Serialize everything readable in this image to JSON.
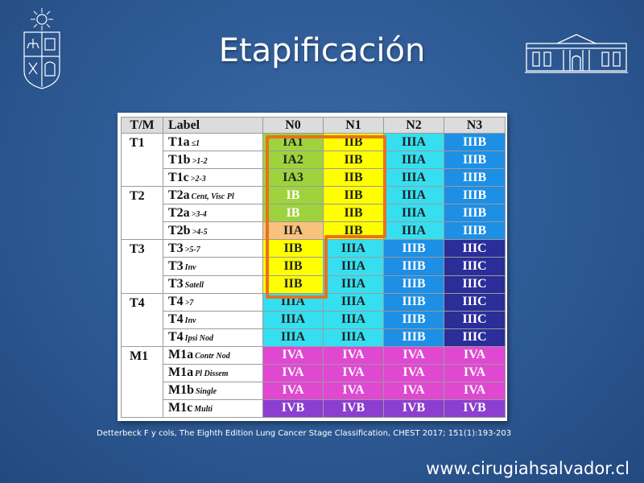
{
  "slide": {
    "title": "Etapificación",
    "citation": "Detterbeck  F y cols, The Eighth Edition Lung Cancer Stage Classification, CHEST 2017; 151(1):193-203",
    "website": "www.cirugiahsalvador.cl"
  },
  "table": {
    "headers": [
      "T/M",
      "Label",
      "N0",
      "N1",
      "N2",
      "N3"
    ],
    "groups": [
      {
        "tm": "T1",
        "rows": [
          {
            "label": "T1a",
            "sub": "≤1",
            "cells": [
              "IA1",
              "IIB",
              "IIIA",
              "IIIB"
            ]
          },
          {
            "label": "T1b",
            "sub": ">1-2",
            "cells": [
              "IA2",
              "IIB",
              "IIIA",
              "IIIB"
            ]
          },
          {
            "label": "T1c",
            "sub": ">2-3",
            "cells": [
              "IA3",
              "IIB",
              "IIIA",
              "IIIB"
            ]
          }
        ]
      },
      {
        "tm": "T2",
        "rows": [
          {
            "label": "T2a",
            "sub": "Cent, Visc Pl",
            "cells": [
              "IB",
              "IIB",
              "IIIA",
              "IIIB"
            ]
          },
          {
            "label": "T2a",
            "sub": ">3-4",
            "cells": [
              "IB",
              "IIB",
              "IIIA",
              "IIIB"
            ]
          },
          {
            "label": "T2b",
            "sub": ">4-5",
            "cells": [
              "IIA",
              "IIB",
              "IIIA",
              "IIIB"
            ]
          }
        ]
      },
      {
        "tm": "T3",
        "rows": [
          {
            "label": "T3",
            "sub": ">5-7",
            "cells": [
              "IIB",
              "IIIA",
              "IIIB",
              "IIIC"
            ]
          },
          {
            "label": "T3",
            "sub": "Inv",
            "cells": [
              "IIB",
              "IIIA",
              "IIIB",
              "IIIC"
            ]
          },
          {
            "label": "T3",
            "sub": "Satell",
            "cells": [
              "IIB",
              "IIIA",
              "IIIB",
              "IIIC"
            ]
          }
        ]
      },
      {
        "tm": "T4",
        "rows": [
          {
            "label": "T4",
            "sub": ">7",
            "cells": [
              "IIIA",
              "IIIA",
              "IIIB",
              "IIIC"
            ]
          },
          {
            "label": "T4",
            "sub": "Inv",
            "cells": [
              "IIIA",
              "IIIA",
              "IIIB",
              "IIIC"
            ]
          },
          {
            "label": "T4",
            "sub": "Ipsi Nod",
            "cells": [
              "IIIA",
              "IIIA",
              "IIIB",
              "IIIC"
            ]
          }
        ]
      },
      {
        "tm": "M1",
        "rows": [
          {
            "label": "M1a",
            "sub": "Contr Nod",
            "cells": [
              "IVA",
              "IVA",
              "IVA",
              "IVA"
            ]
          },
          {
            "label": "M1a",
            "sub": "Pl Dissem",
            "cells": [
              "IVA",
              "IVA",
              "IVA",
              "IVA"
            ]
          },
          {
            "label": "M1b",
            "sub": "Single",
            "cells": [
              "IVA",
              "IVA",
              "IVA",
              "IVA"
            ]
          },
          {
            "label": "M1c",
            "sub": "Multi",
            "cells": [
              "IVB",
              "IVB",
              "IVB",
              "IVB"
            ]
          }
        ]
      }
    ]
  },
  "colors": {
    "background": "#2f5c97",
    "highlight_border": "#e8721c",
    "IA": "#9fd33d",
    "IB": "#9fd33d",
    "IIA": "#f9c27c",
    "IIB": "#ffff00",
    "IIIA": "#36dff0",
    "IIIB": "#1d8fe5",
    "IIIC": "#2b2d99",
    "IVA": "#e048d2",
    "IVB": "#8b3ecf"
  },
  "icons": {
    "left": "university-crest-icon",
    "right": "hospital-building-icon"
  }
}
